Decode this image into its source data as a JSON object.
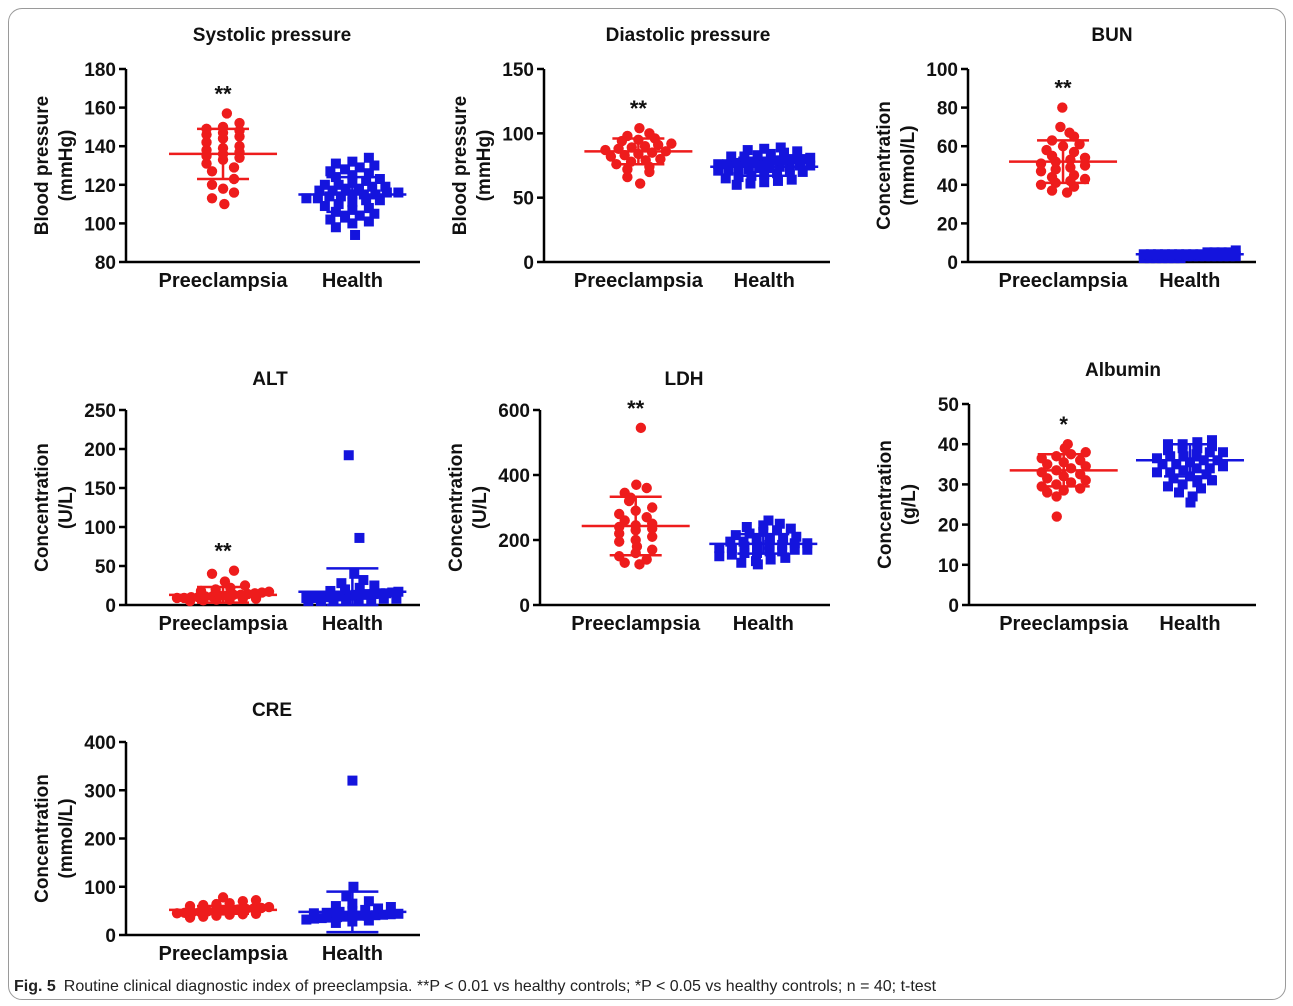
{
  "caption": {
    "label": "Fig. 5",
    "text": "Routine clinical diagnostic index of preeclampsia. **P < 0.01 vs healthy controls; *P < 0.05 vs healthy controls; n = 40; t-test"
  },
  "colors": {
    "preeclampsia": "#ee1c1c",
    "health": "#1414dd",
    "axis": "#000000"
  },
  "chart_data": [
    {
      "type": "scatter",
      "title": "Systolic pressure",
      "ylabel": [
        "Blood pressure",
        "(mmHg)"
      ],
      "ylim": [
        80,
        180
      ],
      "yticks": [
        80,
        100,
        120,
        140,
        160,
        180
      ],
      "categories": [
        "Preeclampsia",
        "Health"
      ],
      "significance": "**",
      "series": [
        {
          "name": "Preeclampsia",
          "marker": "circle",
          "mean": 136,
          "sd": 13,
          "values": [
            157,
            152,
            150,
            149,
            148,
            147,
            146,
            145,
            144,
            142,
            140,
            139,
            138,
            137,
            136,
            135,
            134,
            133,
            131,
            129,
            127,
            123,
            120,
            118,
            116,
            113,
            110
          ]
        },
        {
          "name": "Health",
          "marker": "square",
          "mean": 115,
          "sd": 9,
          "values": [
            134,
            132,
            131,
            130,
            129,
            128,
            127,
            126,
            125,
            124,
            123,
            122,
            121,
            120,
            120,
            119,
            119,
            118,
            118,
            117,
            117,
            116,
            116,
            115,
            115,
            115,
            114,
            114,
            113,
            113,
            112,
            112,
            111,
            110,
            109,
            108,
            107,
            106,
            105,
            104,
            103,
            102,
            101,
            100,
            98,
            94
          ]
        }
      ]
    },
    {
      "type": "scatter",
      "title": "Diastolic pressure",
      "ylabel": [
        "Blood pressure",
        "(mmHg)"
      ],
      "ylim": [
        0,
        150
      ],
      "yticks": [
        0,
        50,
        100,
        150
      ],
      "categories": [
        "Preeclampsia",
        "Health"
      ],
      "significance": "**",
      "series": [
        {
          "name": "Preeclampsia",
          "marker": "circle",
          "mean": 86,
          "sd": 10,
          "values": [
            104,
            100,
            98,
            96,
            95,
            94,
            92,
            91,
            90,
            89,
            88,
            87,
            86,
            85,
            84,
            83,
            82,
            80,
            79,
            78,
            76,
            74,
            72,
            70,
            66,
            61
          ]
        },
        {
          "name": "Health",
          "marker": "square",
          "mean": 74,
          "sd": 7,
          "values": [
            89,
            88,
            87,
            86,
            85,
            84,
            83,
            82,
            82,
            81,
            80,
            80,
            79,
            79,
            78,
            78,
            77,
            77,
            76,
            76,
            75,
            75,
            74,
            74,
            73,
            73,
            72,
            72,
            71,
            71,
            70,
            70,
            69,
            68,
            67,
            66,
            65,
            64,
            63,
            62,
            61,
            60
          ]
        }
      ]
    },
    {
      "type": "scatter",
      "title": "BUN",
      "ylabel": [
        "Concentration",
        "(mmol/L)"
      ],
      "ylim": [
        0,
        100
      ],
      "yticks": [
        0,
        20,
        40,
        60,
        80,
        100
      ],
      "categories": [
        "Preeclampsia",
        "Health"
      ],
      "significance": "**",
      "series": [
        {
          "name": "Preeclampsia",
          "marker": "circle",
          "mean": 52,
          "sd": 11,
          "values": [
            80,
            70,
            67,
            65,
            63,
            61,
            60,
            58,
            57,
            55,
            54,
            53,
            52,
            51,
            50,
            49,
            48,
            47,
            45,
            44,
            43,
            42,
            41,
            40,
            39,
            37,
            36
          ]
        },
        {
          "name": "Health",
          "marker": "square",
          "mean": 4,
          "sd": 1,
          "values": [
            6,
            5,
            5,
            5,
            5,
            4,
            4,
            4,
            4,
            4,
            4,
            4,
            4,
            4,
            3,
            3,
            3,
            3,
            3,
            3,
            3,
            3,
            3,
            2,
            2,
            2,
            2,
            2,
            2,
            2
          ]
        }
      ]
    },
    {
      "type": "scatter",
      "title": "ALT",
      "ylabel": [
        "Concentration",
        "(U/L)"
      ],
      "ylim": [
        0,
        250
      ],
      "yticks": [
        0,
        50,
        100,
        150,
        200,
        250
      ],
      "categories": [
        "Preeclampsia",
        "Health"
      ],
      "significance": "**",
      "series": [
        {
          "name": "Preeclampsia",
          "marker": "circle",
          "mean": 13,
          "sd": 10,
          "values": [
            44,
            40,
            30,
            25,
            22,
            20,
            18,
            17,
            16,
            15,
            14,
            13,
            13,
            12,
            12,
            11,
            11,
            10,
            10,
            9,
            9,
            8,
            8,
            7,
            7,
            6,
            5
          ]
        },
        {
          "name": "Health",
          "marker": "square",
          "mean": 17,
          "sd": 30,
          "values": [
            192,
            86,
            40,
            32,
            28,
            25,
            22,
            20,
            18,
            17,
            16,
            15,
            15,
            14,
            14,
            13,
            13,
            12,
            12,
            11,
            11,
            10,
            10,
            9,
            9,
            8,
            8,
            7,
            7,
            6,
            6,
            5,
            5
          ]
        }
      ]
    },
    {
      "type": "scatter",
      "title": "LDH",
      "ylabel": [
        "Concentration",
        "(U/L)"
      ],
      "ylim": [
        0,
        600
      ],
      "yticks": [
        0,
        200,
        400,
        600
      ],
      "categories": [
        "Preeclampsia",
        "Health"
      ],
      "significance": "**",
      "series": [
        {
          "name": "Preeclampsia",
          "marker": "circle",
          "mean": 243,
          "sd": 90,
          "values": [
            545,
            370,
            360,
            345,
            330,
            320,
            300,
            290,
            280,
            270,
            260,
            250,
            245,
            240,
            235,
            230,
            220,
            210,
            200,
            195,
            180,
            170,
            160,
            150,
            140,
            130,
            125
          ]
        },
        {
          "name": "Health",
          "marker": "square",
          "mean": 188,
          "sd": 30,
          "values": [
            260,
            250,
            245,
            240,
            235,
            230,
            225,
            220,
            215,
            210,
            205,
            200,
            200,
            195,
            195,
            190,
            190,
            185,
            185,
            180,
            180,
            175,
            175,
            170,
            170,
            165,
            165,
            160,
            160,
            155,
            150,
            145,
            140,
            135,
            130,
            125
          ]
        }
      ]
    },
    {
      "type": "scatter",
      "title": "Albumin",
      "ylabel": [
        "Concentration",
        "(g/L)"
      ],
      "ylim": [
        0,
        50
      ],
      "yticks": [
        0,
        10,
        20,
        30,
        40,
        50
      ],
      "categories": [
        "Preeclampsia",
        "Health"
      ],
      "significance": "*",
      "series": [
        {
          "name": "Preeclampsia",
          "marker": "circle",
          "mean": 33.5,
          "sd": 4,
          "values": [
            40,
            39,
            38,
            37.5,
            37,
            36.5,
            36,
            35.5,
            35,
            34.5,
            34,
            33.5,
            33,
            32.5,
            32,
            31.5,
            31,
            30.5,
            30,
            29.5,
            29,
            28.5,
            28,
            27,
            22
          ]
        },
        {
          "name": "Health",
          "marker": "square",
          "mean": 36,
          "sd": 4,
          "values": [
            41,
            40.5,
            40,
            40,
            39.5,
            39,
            39,
            38.5,
            38,
            38,
            37.5,
            37,
            37,
            36.5,
            36,
            36,
            35.5,
            35,
            35,
            34.5,
            34,
            34,
            33.5,
            33,
            33,
            32.5,
            32,
            31.5,
            31,
            30.5,
            30,
            29.5,
            29,
            28,
            27,
            25.5
          ]
        }
      ]
    },
    {
      "type": "scatter",
      "title": "CRE",
      "ylabel": [
        "Concentration",
        "(mmol/L)"
      ],
      "ylim": [
        0,
        400
      ],
      "yticks": [
        0,
        100,
        200,
        300,
        400
      ],
      "categories": [
        "Preeclampsia",
        "Health"
      ],
      "significance": "",
      "series": [
        {
          "name": "Preeclampsia",
          "marker": "circle",
          "mean": 52,
          "sd": 8,
          "values": [
            78,
            72,
            70,
            66,
            64,
            62,
            60,
            58,
            56,
            55,
            54,
            53,
            52,
            51,
            50,
            49,
            48,
            47,
            46,
            45,
            44,
            43,
            42,
            40,
            38,
            36
          ]
        },
        {
          "name": "Health",
          "marker": "square",
          "mean": 48,
          "sd": 42,
          "values": [
            320,
            100,
            80,
            70,
            65,
            60,
            58,
            55,
            52,
            50,
            48,
            46,
            45,
            44,
            43,
            42,
            41,
            40,
            40,
            39,
            38,
            37,
            36,
            35,
            34,
            32,
            30,
            28,
            25
          ]
        }
      ]
    }
  ]
}
